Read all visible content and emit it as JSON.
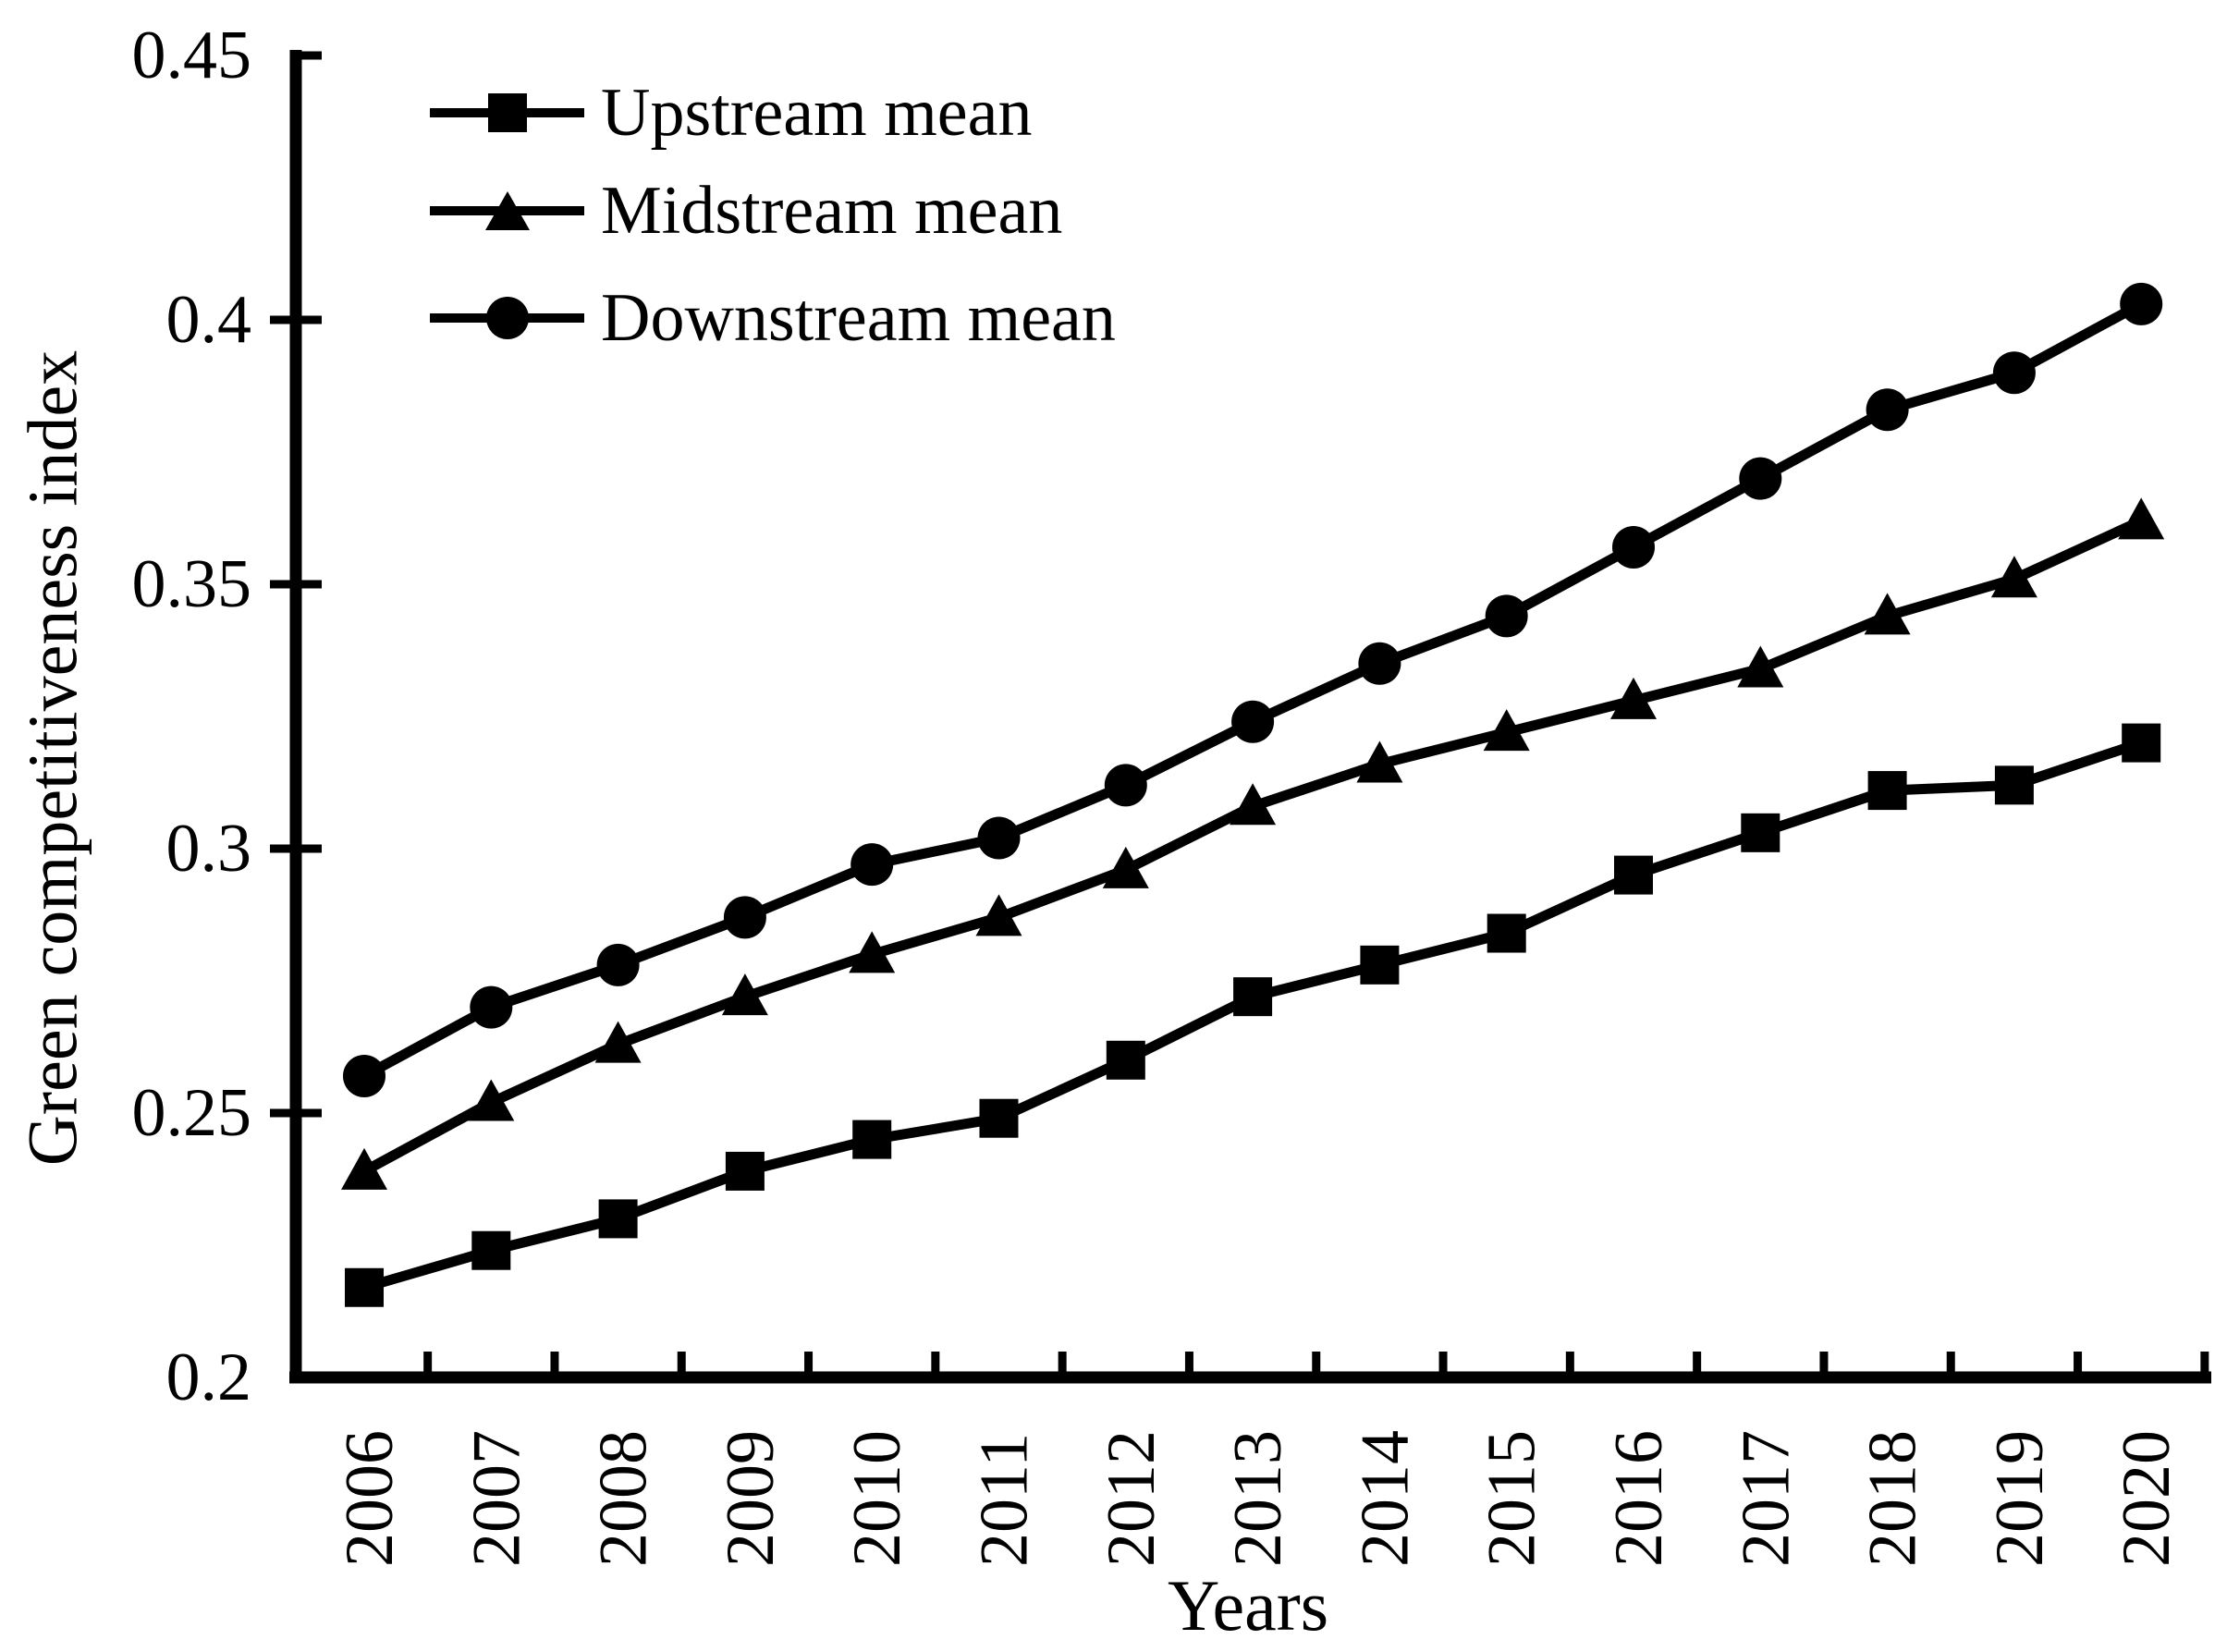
{
  "figure": {
    "background": "#ffffff",
    "ink": "#000000"
  },
  "chart_data": {
    "type": "line",
    "title": "",
    "xlabel": "Years",
    "ylabel": "Green competitiveness index",
    "categories": [
      "2006",
      "2007",
      "2008",
      "2009",
      "2010",
      "2011",
      "2012",
      "2013",
      "2014",
      "2015",
      "2016",
      "2017",
      "2018",
      "2019",
      "2020"
    ],
    "ylim": [
      0.2,
      0.45
    ],
    "ytick_values": [
      0.2,
      0.25,
      0.3,
      0.35,
      0.4,
      0.45
    ],
    "ytick_labels": [
      "0.2",
      "0.25",
      "0.3",
      "0.35",
      "0.4",
      "0.45"
    ],
    "grid": "off",
    "legend_position": "upper-left-inside",
    "series": [
      {
        "name": "Upstream mean",
        "marker": "square",
        "color": "#000000",
        "values": [
          0.217,
          0.224,
          0.23,
          0.239,
          0.245,
          0.249,
          0.26,
          0.272,
          0.278,
          0.284,
          0.295,
          0.303,
          0.311,
          0.312,
          0.32
        ]
      },
      {
        "name": "Midstream mean",
        "marker": "triangle",
        "color": "#000000",
        "values": [
          0.239,
          0.252,
          0.263,
          0.272,
          0.28,
          0.287,
          0.296,
          0.308,
          0.316,
          0.322,
          0.328,
          0.334,
          0.344,
          0.351,
          0.362
        ]
      },
      {
        "name": "Downstream mean",
        "marker": "circle",
        "color": "#000000",
        "values": [
          0.257,
          0.27,
          0.278,
          0.287,
          0.297,
          0.302,
          0.312,
          0.324,
          0.335,
          0.344,
          0.357,
          0.37,
          0.383,
          0.39,
          0.403
        ]
      }
    ]
  }
}
